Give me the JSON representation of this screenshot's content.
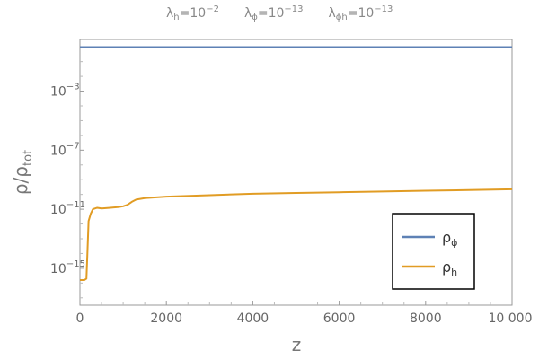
{
  "chart_data": {
    "type": "line",
    "title": {
      "lh_label": "λ",
      "lh_sub": "h",
      "lh_value": "=10",
      "lh_exp": "−2",
      "lphi_label": "λ",
      "lphi_sub": "ϕ",
      "lphi_value": "=10",
      "lphi_exp": "−13",
      "lphih_label": "λ",
      "lphih_sub": "ϕh",
      "lphih_value": "=10",
      "lphih_exp": "−13"
    },
    "xlabel": "z",
    "ylabel": {
      "main": "ρ/ρ",
      "sub": "tot"
    },
    "xlim": [
      0,
      10000
    ],
    "ylim_log10": [
      -17.5,
      0.5
    ],
    "y_scale": "log",
    "x_ticks": [
      {
        "value": 0,
        "label": "0"
      },
      {
        "value": 2000,
        "label": "2000"
      },
      {
        "value": 4000,
        "label": "4000"
      },
      {
        "value": 6000,
        "label": "6000"
      },
      {
        "value": 8000,
        "label": "8000"
      },
      {
        "value": 10000,
        "label": "10 000"
      }
    ],
    "y_ticks": [
      {
        "exp": -3,
        "base": "10",
        "sup": "−3"
      },
      {
        "exp": -7,
        "base": "10",
        "sup": "−7"
      },
      {
        "exp": -11,
        "base": "10",
        "sup": "−11"
      },
      {
        "exp": -15,
        "base": "10",
        "sup": "−15"
      }
    ],
    "series": [
      {
        "name": "ρϕ",
        "name_main": "ρ",
        "name_sub": "ϕ",
        "color": "#5e81b5",
        "x": [
          0,
          10000
        ],
        "y_log10": [
          -0.02,
          -0.02
        ]
      },
      {
        "name": "ρh",
        "name_main": "ρ",
        "name_sub": "h",
        "color": "#e19c24",
        "x": [
          0,
          50,
          100,
          150,
          170,
          200,
          250,
          300,
          400,
          500,
          700,
          900,
          1000,
          1100,
          1200,
          1300,
          1500,
          2000,
          3000,
          4000,
          5000,
          6000,
          7000,
          8000,
          9000,
          10000
        ],
        "y_log10": [
          -15.8,
          -15.8,
          -15.8,
          -15.7,
          -14.2,
          -11.8,
          -11.3,
          -11.0,
          -10.9,
          -10.95,
          -10.9,
          -10.85,
          -10.8,
          -10.7,
          -10.5,
          -10.35,
          -10.25,
          -10.15,
          -10.05,
          -9.95,
          -9.9,
          -9.85,
          -9.8,
          -9.75,
          -9.7,
          -9.65
        ]
      }
    ],
    "legend": {
      "position": "bottom-right"
    },
    "grid": false
  }
}
